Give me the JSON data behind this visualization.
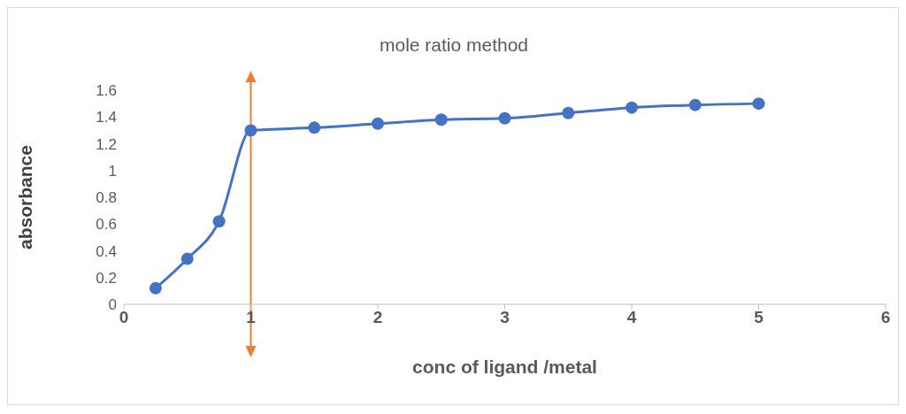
{
  "chart_data": {
    "type": "line",
    "title": "mole ratio method",
    "xlabel": "conc of ligand /metal",
    "ylabel": "absorbance",
    "x": [
      0.25,
      0.5,
      0.75,
      1,
      1.5,
      2,
      2.5,
      3,
      3.5,
      4,
      4.5,
      5
    ],
    "series": [
      {
        "color": "#4472c4",
        "values": [
          0.12,
          0.34,
          0.62,
          1.3,
          1.32,
          1.35,
          1.38,
          1.39,
          1.43,
          1.47,
          1.49,
          1.5
        ]
      }
    ],
    "xlim": [
      0,
      6
    ],
    "xticks": [
      0,
      1,
      2,
      3,
      4,
      5,
      6
    ],
    "ylim": [
      0,
      1.6
    ],
    "yticks": [
      0,
      0.2,
      0.4,
      0.6,
      0.8,
      1,
      1.2,
      1.4,
      1.6
    ],
    "ref_lines": [
      {
        "axis": "x",
        "value": 1,
        "color": "#ed7d31"
      }
    ],
    "grid": false,
    "legend": false,
    "marker": "circle",
    "line_style": "solid"
  }
}
